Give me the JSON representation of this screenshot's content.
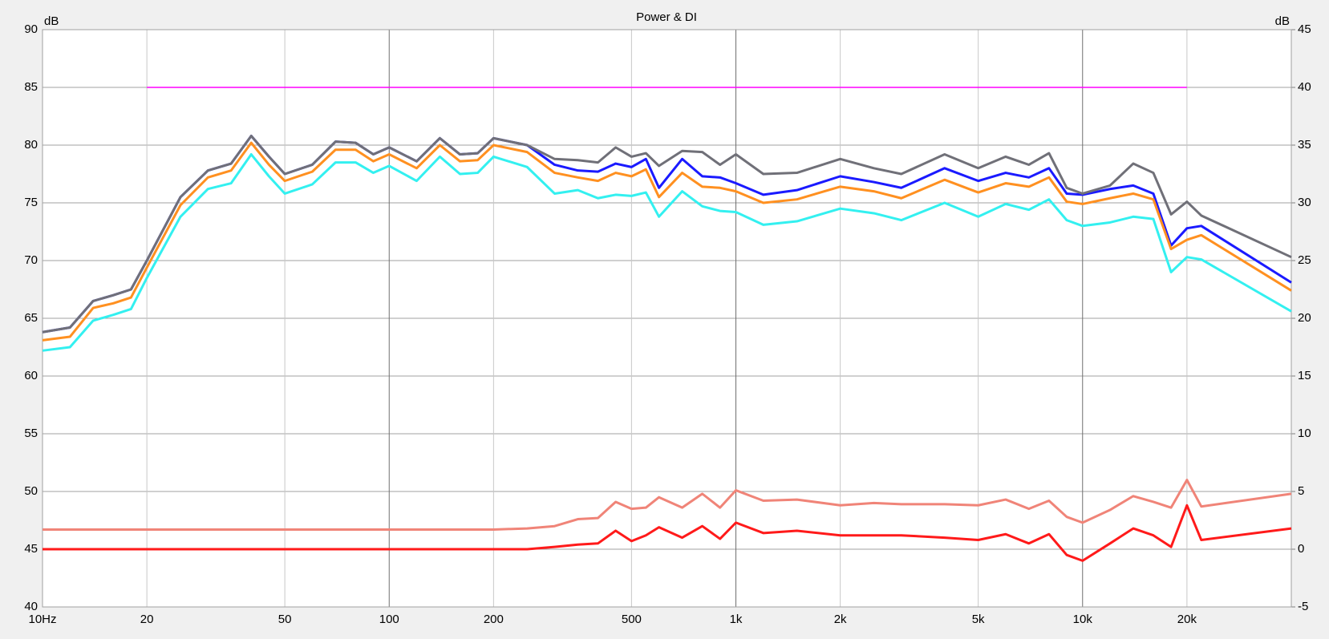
{
  "chart_data": {
    "type": "line",
    "title": "Power & DI",
    "y_label": "dB",
    "y2_label": "dB",
    "x_log": true,
    "grid": true,
    "xlim": [
      10,
      40000
    ],
    "xticks": [
      {
        "value": 10,
        "label": "10Hz"
      },
      20,
      50,
      100,
      200,
      500,
      {
        "value": 1000,
        "label": "1k"
      },
      {
        "value": 2000,
        "label": "2k"
      },
      {
        "value": 5000,
        "label": "5k"
      },
      {
        "value": 10000,
        "label": "10k"
      },
      {
        "value": 20000,
        "label": "20k"
      }
    ],
    "ylim": [
      40,
      90
    ],
    "yticks": [
      40,
      45,
      50,
      55,
      60,
      65,
      70,
      75,
      80,
      85,
      90
    ],
    "y2lim": [
      -5,
      45
    ],
    "y2ticks": [
      -5,
      0,
      5,
      10,
      15,
      20,
      25,
      30,
      35,
      40,
      45
    ],
    "x": [
      10,
      12,
      14,
      16,
      18,
      20,
      25,
      30,
      35,
      40,
      45,
      50,
      60,
      70,
      80,
      90,
      100,
      120,
      140,
      160,
      180,
      200,
      250,
      300,
      350,
      400,
      450,
      500,
      550,
      600,
      700,
      800,
      900,
      1000,
      1200,
      1500,
      2000,
      2500,
      3000,
      4000,
      5000,
      6000,
      7000,
      8000,
      9000,
      10000,
      12000,
      14000,
      16000,
      18000,
      20000,
      22000,
      40000
    ],
    "series": [
      {
        "color": "#ff00ff",
        "x": [
          20,
          20000
        ],
        "values": [
          85,
          85
        ]
      },
      {
        "color": "#1a1aff",
        "values": [
          63.8,
          64.2,
          66.5,
          67,
          67.5,
          70,
          75.5,
          77.8,
          78.4,
          80.8,
          79,
          77.5,
          78.3,
          80.3,
          80.2,
          79.2,
          79.8,
          78.6,
          80.6,
          79.2,
          79.3,
          80.6,
          80,
          78.3,
          77.8,
          77.7,
          78.4,
          78.1,
          78.8,
          76.3,
          78.8,
          77.3,
          77.2,
          76.7,
          75.7,
          76.1,
          77.3,
          76.8,
          76.3,
          78,
          76.9,
          77.6,
          77.2,
          78,
          75.8,
          75.7,
          76.2,
          76.5,
          75.8,
          71.3,
          72.8,
          73,
          68.1
        ]
      },
      {
        "color": "#ff9020",
        "values": [
          63.1,
          63.4,
          65.9,
          66.3,
          66.8,
          69.4,
          74.8,
          77.2,
          77.8,
          80.2,
          78.3,
          76.9,
          77.7,
          79.6,
          79.6,
          78.6,
          79.2,
          78,
          80,
          78.6,
          78.7,
          80,
          79.4,
          77.6,
          77.2,
          76.9,
          77.6,
          77.3,
          77.9,
          75.5,
          77.6,
          76.4,
          76.3,
          76,
          75,
          75.3,
          76.4,
          76,
          75.4,
          77,
          75.9,
          76.7,
          76.4,
          77.2,
          75.1,
          74.9,
          75.4,
          75.8,
          75.3,
          71,
          71.8,
          72.2,
          67.4
        ]
      },
      {
        "color": "#33f0f0",
        "values": [
          62.2,
          62.5,
          64.8,
          65.3,
          65.8,
          68.5,
          73.8,
          76.2,
          76.7,
          79.2,
          77.3,
          75.8,
          76.6,
          78.5,
          78.5,
          77.6,
          78.2,
          76.9,
          79,
          77.5,
          77.6,
          79,
          78.1,
          75.8,
          76.1,
          75.4,
          75.7,
          75.6,
          75.9,
          73.8,
          76,
          74.7,
          74.3,
          74.2,
          73.1,
          73.4,
          74.5,
          74.1,
          73.5,
          75,
          73.8,
          74.9,
          74.4,
          75.3,
          73.5,
          73,
          73.3,
          73.8,
          73.6,
          69,
          70.3,
          70.1,
          65.6
        ]
      },
      {
        "color": "#707078",
        "values": [
          63.8,
          64.2,
          66.5,
          67,
          67.5,
          70,
          75.5,
          77.8,
          78.4,
          80.8,
          79,
          77.5,
          78.3,
          80.3,
          80.2,
          79.2,
          79.8,
          78.6,
          80.6,
          79.2,
          79.3,
          80.6,
          80,
          78.8,
          78.7,
          78.5,
          79.8,
          79,
          79.3,
          78.2,
          79.5,
          79.4,
          78.3,
          79.2,
          77.5,
          77.6,
          78.8,
          78,
          77.5,
          79.2,
          78,
          79,
          78.3,
          79.3,
          76.3,
          75.8,
          76.5,
          78.4,
          77.6,
          74,
          75.1,
          73.9,
          70.3
        ]
      },
      {
        "color": "#f08478",
        "axis": "y2",
        "values": [
          1.7,
          1.7,
          1.7,
          1.7,
          1.7,
          1.7,
          1.7,
          1.7,
          1.7,
          1.7,
          1.7,
          1.7,
          1.7,
          1.7,
          1.7,
          1.7,
          1.7,
          1.7,
          1.7,
          1.7,
          1.7,
          1.7,
          1.8,
          2.0,
          2.6,
          2.7,
          4.1,
          3.5,
          3.6,
          4.5,
          3.6,
          4.8,
          3.6,
          5.1,
          4.2,
          4.3,
          3.8,
          4.0,
          3.9,
          3.9,
          3.8,
          4.3,
          3.5,
          4.2,
          2.8,
          2.3,
          3.4,
          4.6,
          4.1,
          3.6,
          6.0,
          3.7,
          4.8
        ]
      },
      {
        "color": "#ff1a1a",
        "axis": "y2",
        "values": [
          0,
          0,
          0,
          0,
          0,
          0,
          0,
          0,
          0,
          0,
          0,
          0,
          0,
          0,
          0,
          0,
          0,
          0,
          0,
          0,
          0,
          0,
          0,
          0.2,
          0.4,
          0.5,
          1.6,
          0.7,
          1.2,
          1.9,
          1,
          2.0,
          0.9,
          2.3,
          1.4,
          1.6,
          1.2,
          1.2,
          1.2,
          1.0,
          0.8,
          1.3,
          0.5,
          1.3,
          -0.5,
          -1,
          0.5,
          1.8,
          1.2,
          0.2,
          3.8,
          0.8,
          1.8
        ]
      }
    ]
  }
}
